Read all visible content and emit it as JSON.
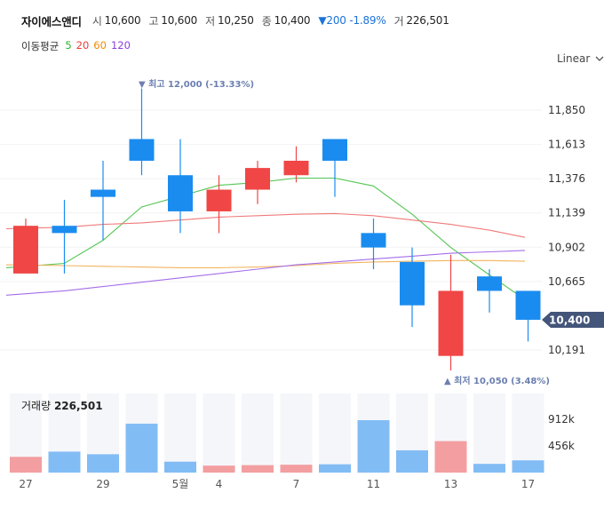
{
  "header": {
    "name": "자이에스앤디",
    "open_label": "시",
    "open": "10,600",
    "high_label": "고",
    "high": "10,600",
    "low_label": "저",
    "low": "10,250",
    "close_label": "종",
    "close": "10,400",
    "change": "▼200 -1.89%",
    "volume_label": "거",
    "volume": "226,501"
  },
  "ma": {
    "title": "이동평균",
    "items": [
      {
        "label": "5",
        "color": "#2db52d"
      },
      {
        "label": "20",
        "color": "#ee3b3b"
      },
      {
        "label": "60",
        "color": "#f08c00"
      },
      {
        "label": "120",
        "color": "#8a3ee0"
      }
    ]
  },
  "scale": {
    "label": "Linear",
    "icon": "chevron-down-icon"
  },
  "current_price_tag": "10,400",
  "annotations": {
    "high": "▼ 최고 12,000 (-13.33%)",
    "low": "▲ 최저 10,050 (3.48%)"
  },
  "volume_panel": {
    "label": "거래량",
    "value": "226,501"
  },
  "colors": {
    "up": "#f04646",
    "down": "#1a8cf0",
    "up_vol": "#f39ea0",
    "down_vol": "#82bcf5",
    "tag": "#44557a"
  },
  "chart_data": {
    "type": "candlestick",
    "y_ticks": [
      "11,850",
      "11,613",
      "11,376",
      "11,139",
      "10,902",
      "10,665",
      "10,191"
    ],
    "y_tick_values": [
      11850,
      11613,
      11376,
      11139,
      10902,
      10665,
      10191
    ],
    "volume_ticks": [
      "912k",
      "456k"
    ],
    "volume_tick_values": [
      912000,
      456000
    ],
    "x_labels": [
      {
        "index": 0,
        "label": "27"
      },
      {
        "index": 2,
        "label": "29"
      },
      {
        "index": 4,
        "label": "5월"
      },
      {
        "index": 5,
        "label": "4"
      },
      {
        "index": 7,
        "label": "7"
      },
      {
        "index": 9,
        "label": "11"
      },
      {
        "index": 11,
        "label": "13"
      },
      {
        "index": 13,
        "label": "17"
      }
    ],
    "candles": [
      {
        "open": 10720,
        "high": 11100,
        "low": 10720,
        "close": 11050
      },
      {
        "open": 11050,
        "high": 11230,
        "low": 10720,
        "close": 11000
      },
      {
        "open": 11300,
        "high": 11500,
        "low": 10950,
        "close": 11250
      },
      {
        "open": 11650,
        "high": 12000,
        "low": 11400,
        "close": 11500
      },
      {
        "open": 11400,
        "high": 11650,
        "low": 11000,
        "close": 11150
      },
      {
        "open": 11150,
        "high": 11400,
        "low": 11000,
        "close": 11300
      },
      {
        "open": 11300,
        "high": 11500,
        "low": 11200,
        "close": 11450
      },
      {
        "open": 11400,
        "high": 11600,
        "low": 11350,
        "close": 11500
      },
      {
        "open": 11650,
        "high": 11650,
        "low": 11250,
        "close": 11500
      },
      {
        "open": 11000,
        "high": 11100,
        "low": 10750,
        "close": 10900
      },
      {
        "open": 10800,
        "high": 10900,
        "low": 10350,
        "close": 10500
      },
      {
        "open": 10150,
        "high": 10850,
        "low": 10050,
        "close": 10600
      },
      {
        "open": 10700,
        "high": 10750,
        "low": 10450,
        "close": 10600
      },
      {
        "open": 10600,
        "high": 10600,
        "low": 10250,
        "close": 10400
      }
    ],
    "volumes": [
      180000,
      240000,
      210000,
      560000,
      125000,
      80000,
      85000,
      90000,
      95000,
      600000,
      255000,
      360000,
      100000,
      140000
    ],
    "ma_lines": [
      {
        "name": "5",
        "color": "#55c655",
        "values": [
          10760,
          10790,
          10950,
          11180,
          11255,
          11330,
          11350,
          11380,
          11380,
          11325,
          11130,
          10900,
          10710,
          10540
        ]
      },
      {
        "name": "20",
        "color": "#f07a7a",
        "values": [
          11030,
          11040,
          11060,
          11070,
          11090,
          11110,
          11120,
          11130,
          11135,
          11120,
          11090,
          11060,
          11020,
          10970
        ]
      },
      {
        "name": "60",
        "color": "#f2b45e",
        "values": [
          10780,
          10775,
          10770,
          10765,
          10760,
          10760,
          10765,
          10775,
          10790,
          10800,
          10805,
          10810,
          10810,
          10805
        ]
      },
      {
        "name": "120",
        "color": "#a56ee8",
        "values": [
          10570,
          10600,
          10630,
          10660,
          10690,
          10720,
          10750,
          10780,
          10800,
          10820,
          10840,
          10860,
          10870,
          10880
        ]
      }
    ]
  }
}
